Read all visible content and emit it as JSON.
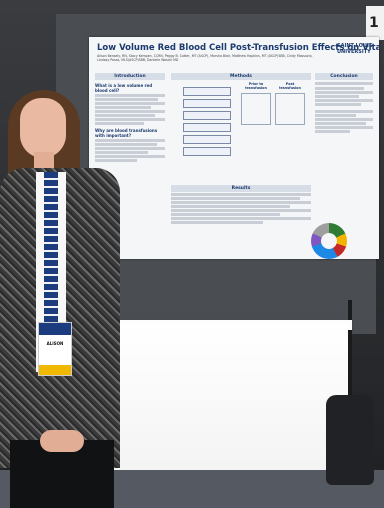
{
  "poster": {
    "title": "Low Volume Red Blood Cell Post-Transfusion Effects on Vital Parameters",
    "institution": "SAINT LOUIS UNIVERSITY",
    "authors": "Alison Bensely, RN, Stacy Kempen, CCRN, Peggy B. Cotter, MT (ASCP), Marsha Blair, Matthew Hopkins, MT (ASCP)SBB, Cindy Mossavio, Lindsay Pasas, MLS(ASCP)SBB, Danielle Wasick MD",
    "sections": {
      "introduction": "Introduction",
      "methods": "Methods",
      "results": "Results",
      "conclusion": "Conclusion"
    },
    "intro_q1": "What is a low volume red blood cell?",
    "intro_q2": "Why are blood transfusions with important?",
    "table_headers": [
      "Prior to transfusion",
      "Post transfusion"
    ]
  },
  "corner_sign": "1",
  "badge_name": "ALISON"
}
